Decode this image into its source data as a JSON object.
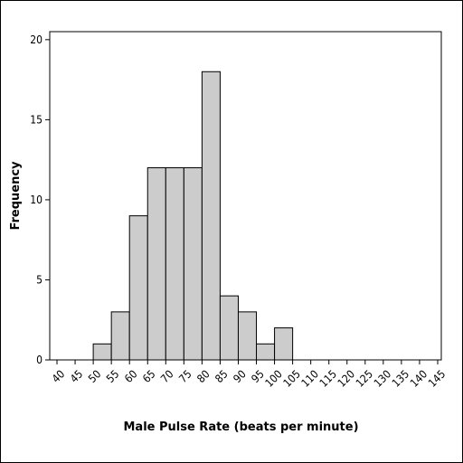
{
  "chart_data": {
    "type": "bar",
    "title": "",
    "xlabel": "Male Pulse Rate (beats per minute)",
    "ylabel": "Frequency",
    "bin_edges": [
      40,
      45,
      50,
      55,
      60,
      65,
      70,
      75,
      80,
      85,
      90,
      95,
      100,
      105,
      110,
      115,
      120,
      125,
      130,
      135,
      140,
      145
    ],
    "bars": [
      {
        "x0": 50,
        "x1": 55,
        "value": 1
      },
      {
        "x0": 55,
        "x1": 60,
        "value": 3
      },
      {
        "x0": 60,
        "x1": 65,
        "value": 9
      },
      {
        "x0": 65,
        "x1": 70,
        "value": 12
      },
      {
        "x0": 70,
        "x1": 75,
        "value": 12
      },
      {
        "x0": 75,
        "x1": 80,
        "value": 12
      },
      {
        "x0": 80,
        "x1": 85,
        "value": 18
      },
      {
        "x0": 85,
        "x1": 90,
        "value": 4
      },
      {
        "x0": 90,
        "x1": 95,
        "value": 3
      },
      {
        "x0": 95,
        "x1": 100,
        "value": 1
      },
      {
        "x0": 100,
        "x1": 105,
        "value": 2
      }
    ],
    "xlim": [
      38,
      146
    ],
    "ylim": [
      0,
      20.5
    ],
    "yticks": [
      0,
      5,
      10,
      15,
      20
    ],
    "grid": false,
    "bar_color": "#cccccc"
  }
}
